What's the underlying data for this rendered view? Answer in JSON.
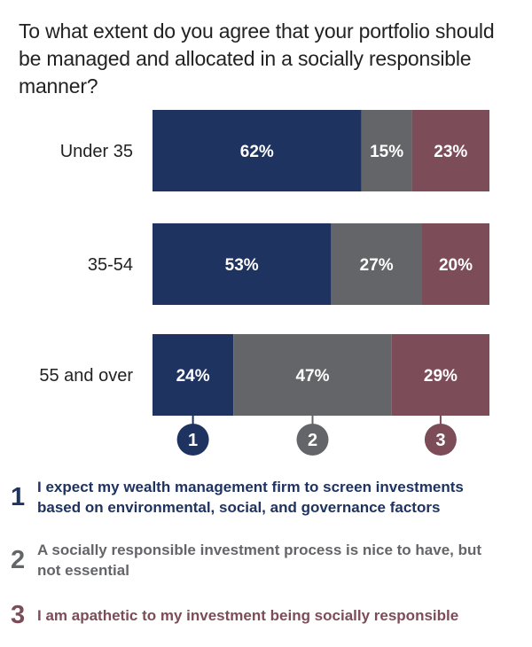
{
  "title": "To what extent do you agree that your portfolio should be managed and allocated in a socially responsible manner?",
  "colors": {
    "series1": "#1e3360",
    "series2": "#646569",
    "series3": "#7d4c59",
    "text": "#222222"
  },
  "chart_data": {
    "type": "bar",
    "orientation": "horizontal",
    "stacked": true,
    "normalized_percent": true,
    "categories": [
      "Under 35",
      "35-54",
      "55 and over"
    ],
    "series": [
      {
        "marker": "1",
        "values": [
          62,
          53,
          24
        ],
        "labels": [
          "62%",
          "53%",
          "24%"
        ]
      },
      {
        "marker": "2",
        "values": [
          15,
          27,
          47
        ],
        "labels": [
          "15%",
          "27%",
          "47%"
        ]
      },
      {
        "marker": "3",
        "values": [
          23,
          20,
          29
        ],
        "labels": [
          "23%",
          "20%",
          "29%"
        ]
      }
    ],
    "xlim": [
      0,
      100
    ],
    "grid": false
  },
  "legend": [
    {
      "num": "1",
      "text": "I expect my wealth management firm to screen investments based on environmental, social, and governance factors"
    },
    {
      "num": "2",
      "text": "A socially responsible investment process is nice to have, but not essential"
    },
    {
      "num": "3",
      "text": "I am apathetic to my investment being socially responsible"
    }
  ]
}
